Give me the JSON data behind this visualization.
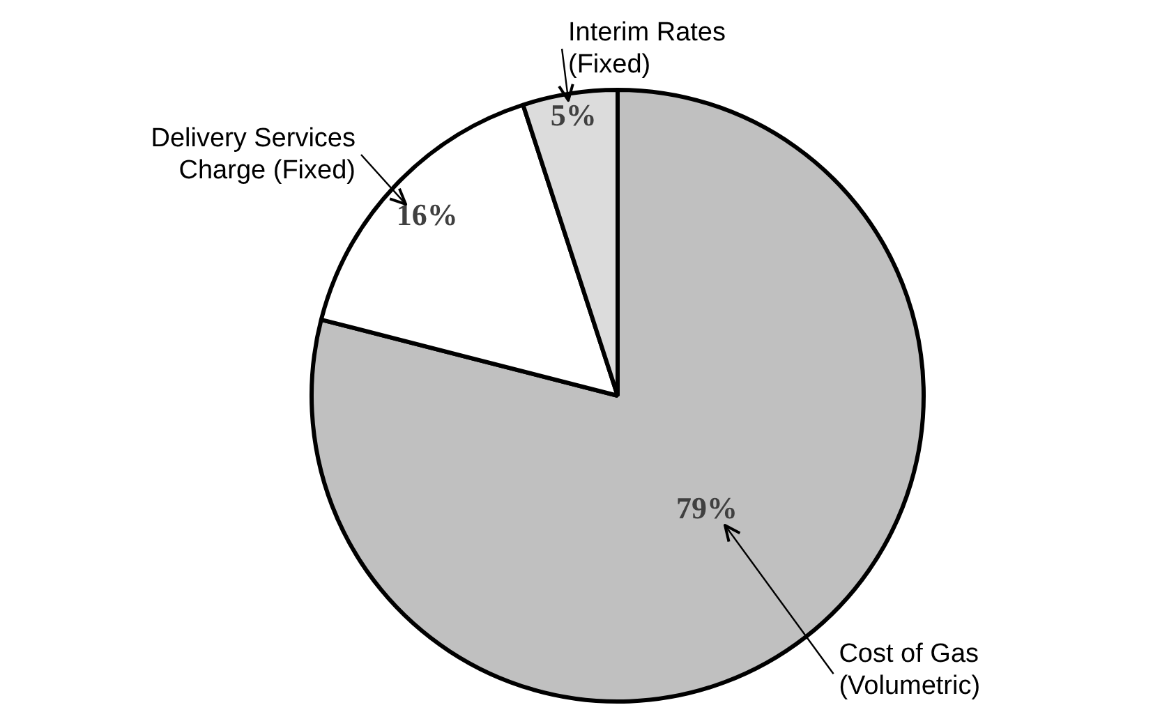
{
  "chart_data": {
    "type": "pie",
    "categories": [
      "Cost of Gas (Volumetric)",
      "Delivery Services Charge (Fixed)",
      "Interim Rates (Fixed)"
    ],
    "values": [
      79,
      16,
      5
    ],
    "value_labels": [
      "79%",
      "16%",
      "5%"
    ],
    "colors": [
      "#c0c0c0",
      "#ffffff",
      "#dcdcdc"
    ],
    "legend": false
  }
}
